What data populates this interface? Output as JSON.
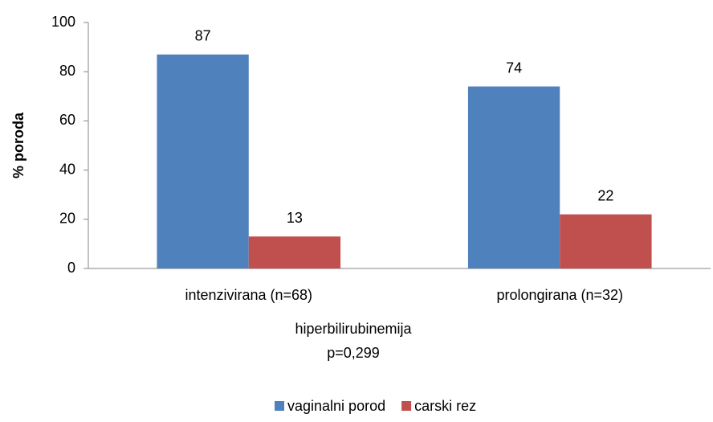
{
  "chart_data": {
    "type": "bar",
    "categories": [
      "intenzivirana (n=68)",
      "prolongirana (n=32)"
    ],
    "series": [
      {
        "name": "vaginalni porod",
        "color": "#4f81bd",
        "values": [
          87,
          74
        ]
      },
      {
        "name": "carski rez",
        "color": "#c0504d",
        "values": [
          13,
          22
        ]
      }
    ],
    "x_label": "hiperbilirubinemija",
    "annotation": "p=0,299",
    "y_label": "% poroda",
    "ylim": [
      0,
      100
    ],
    "yticks": [
      0,
      20,
      40,
      60,
      80,
      100
    ],
    "grid": false,
    "legend": "bottom"
  }
}
